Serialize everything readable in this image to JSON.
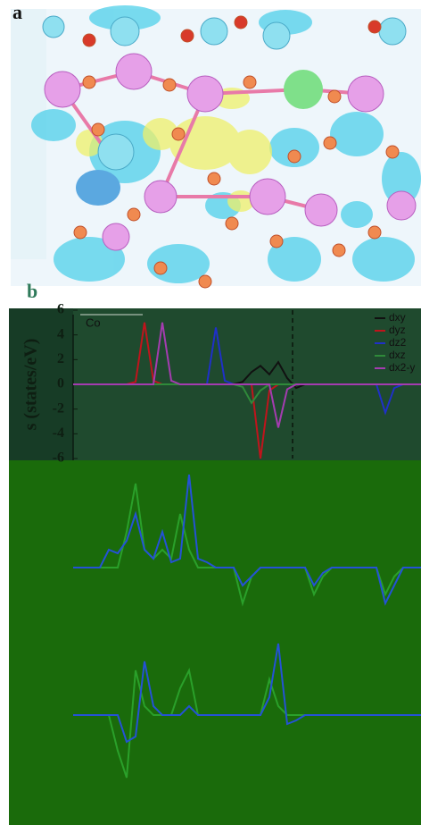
{
  "panel_labels": [
    "a",
    "b"
  ],
  "chart_data": [
    {
      "type": "line",
      "annotation": "Co",
      "ylabel": "s (states/eV)",
      "x": [
        0,
        1,
        2,
        3,
        4,
        5,
        6,
        7,
        8,
        9,
        10,
        11,
        12,
        13,
        14,
        15,
        16,
        17,
        18,
        19,
        20,
        21,
        22,
        23,
        24,
        25,
        26,
        27,
        28,
        29,
        30,
        31,
        32,
        33,
        34,
        35,
        36,
        37,
        38,
        39
      ],
      "xlim": [
        0,
        39
      ],
      "ylim": [
        -6,
        6
      ],
      "yticks": [
        6,
        4,
        2,
        0,
        -2,
        -4,
        -6
      ],
      "vline": 24.6,
      "legend": "upper right",
      "series": [
        {
          "name": "dxy",
          "color": "#111111",
          "values": [
            0,
            0,
            0,
            0,
            0,
            0,
            0,
            0,
            0,
            0,
            0,
            0,
            0,
            0,
            0,
            0,
            0,
            0,
            0,
            0.2,
            1,
            1.5,
            0.8,
            1.8,
            0.5,
            -0.3,
            0,
            0,
            0,
            0,
            0,
            0,
            0,
            0,
            0,
            0,
            0,
            0,
            0,
            0
          ]
        },
        {
          "name": "dyz",
          "color": "#c0141c",
          "values": [
            0,
            0,
            0,
            0,
            0,
            0,
            0,
            0.2,
            5,
            0.3,
            0,
            0,
            0,
            0,
            0,
            0,
            0,
            0,
            0,
            0,
            0,
            -6,
            -0.5,
            0,
            0,
            0,
            0,
            0,
            0,
            0,
            0,
            0,
            0,
            0,
            0,
            0,
            0,
            0,
            0,
            0
          ]
        },
        {
          "name": "dz2",
          "color": "#1f30c8",
          "values": [
            0,
            0,
            0,
            0,
            0,
            0,
            0,
            0,
            0,
            0,
            0,
            0,
            0,
            0,
            0,
            0,
            4.6,
            0.3,
            0,
            0,
            0,
            0,
            0,
            0,
            0,
            0,
            0,
            0,
            0,
            0,
            0,
            0,
            0,
            0,
            0,
            -2.3,
            -0.3,
            0,
            0,
            0
          ]
        },
        {
          "name": "dxz",
          "color": "#2f8a3a",
          "values": [
            0,
            0,
            0,
            0,
            0,
            0,
            0,
            0,
            0,
            0,
            0,
            0,
            0,
            0,
            0,
            0,
            0,
            0,
            0,
            -0.2,
            -1.5,
            -0.5,
            0,
            0,
            0,
            0,
            0,
            0,
            0,
            0,
            0,
            0,
            0,
            0,
            0,
            0,
            0,
            0,
            0,
            0
          ]
        },
        {
          "name": "dx2-y",
          "color": "#a43cb0",
          "values": [
            0,
            0,
            0,
            0,
            0,
            0,
            0,
            0,
            0,
            0,
            5,
            0.3,
            0,
            0,
            0,
            0,
            0,
            0,
            0,
            0,
            0,
            0,
            0,
            -3.5,
            -0.4,
            0,
            0,
            0,
            0,
            0,
            0,
            0,
            0,
            0,
            0,
            0,
            0,
            0,
            0,
            0
          ]
        }
      ]
    },
    {
      "type": "line",
      "x": [
        0,
        1,
        2,
        3,
        4,
        5,
        6,
        7,
        8,
        9,
        10,
        11,
        12,
        13,
        14,
        15,
        16,
        17,
        18,
        19,
        20,
        21,
        22,
        23,
        24,
        25,
        26,
        27,
        28,
        29,
        30,
        31,
        32,
        33,
        34,
        35,
        36,
        37,
        38,
        39
      ],
      "xlim": [
        -7,
        39
      ],
      "ylim": [
        -4,
        6
      ],
      "series": [
        {
          "color": "#2aa02a",
          "values": [
            0,
            0,
            0,
            0,
            0,
            0,
            2,
            4.7,
            1,
            0.5,
            1,
            0.5,
            3,
            1,
            0,
            0,
            0,
            0,
            0,
            -2,
            -0.5,
            0,
            0,
            0,
            0,
            0,
            0,
            -1.5,
            -0.5,
            0,
            0,
            0,
            0,
            0,
            0,
            -1.5,
            -0.5,
            0,
            0,
            0
          ]
        },
        {
          "color": "#2452d6",
          "values": [
            0,
            0,
            0,
            0,
            1,
            0.8,
            1.5,
            3,
            1,
            0.5,
            2,
            0.3,
            0.5,
            5.2,
            0.5,
            0.3,
            0,
            0,
            0,
            -1,
            -0.5,
            0,
            0,
            0,
            0,
            0,
            0,
            -1,
            -0.3,
            0,
            0,
            0,
            0,
            0,
            0,
            -2,
            -1,
            0,
            0,
            0
          ]
        }
      ]
    },
    {
      "type": "line",
      "x": [
        0,
        1,
        2,
        3,
        4,
        5,
        6,
        7,
        8,
        9,
        10,
        11,
        12,
        13,
        14,
        15,
        16,
        17,
        18,
        19,
        20,
        21,
        22,
        23,
        24,
        25,
        26,
        27,
        28,
        29,
        30,
        31,
        32,
        33,
        34,
        35,
        36,
        37,
        38,
        39
      ],
      "xlim": [
        -7,
        39
      ],
      "ylim": [
        -5,
        5
      ],
      "series": [
        {
          "color": "#2aa02a",
          "values": [
            0,
            0,
            0,
            0,
            0,
            -2,
            -3.5,
            2.5,
            0.5,
            0,
            0,
            0,
            1.5,
            2.5,
            0,
            0,
            0,
            0,
            0,
            0,
            0,
            0,
            2,
            0.5,
            0,
            0,
            0,
            0,
            0,
            0,
            0,
            0,
            0,
            0,
            0,
            0,
            0,
            0,
            0,
            0
          ]
        },
        {
          "color": "#2452d6",
          "values": [
            0,
            0,
            0,
            0,
            0,
            0,
            -1.5,
            -1.2,
            3,
            0.5,
            0,
            0,
            0,
            0.5,
            0,
            0,
            0,
            0,
            0,
            0,
            0,
            0,
            1,
            4,
            -0.5,
            -0.3,
            0,
            0,
            0,
            0,
            0,
            0,
            0,
            0,
            0,
            0,
            0,
            0,
            0,
            0
          ]
        }
      ]
    }
  ]
}
